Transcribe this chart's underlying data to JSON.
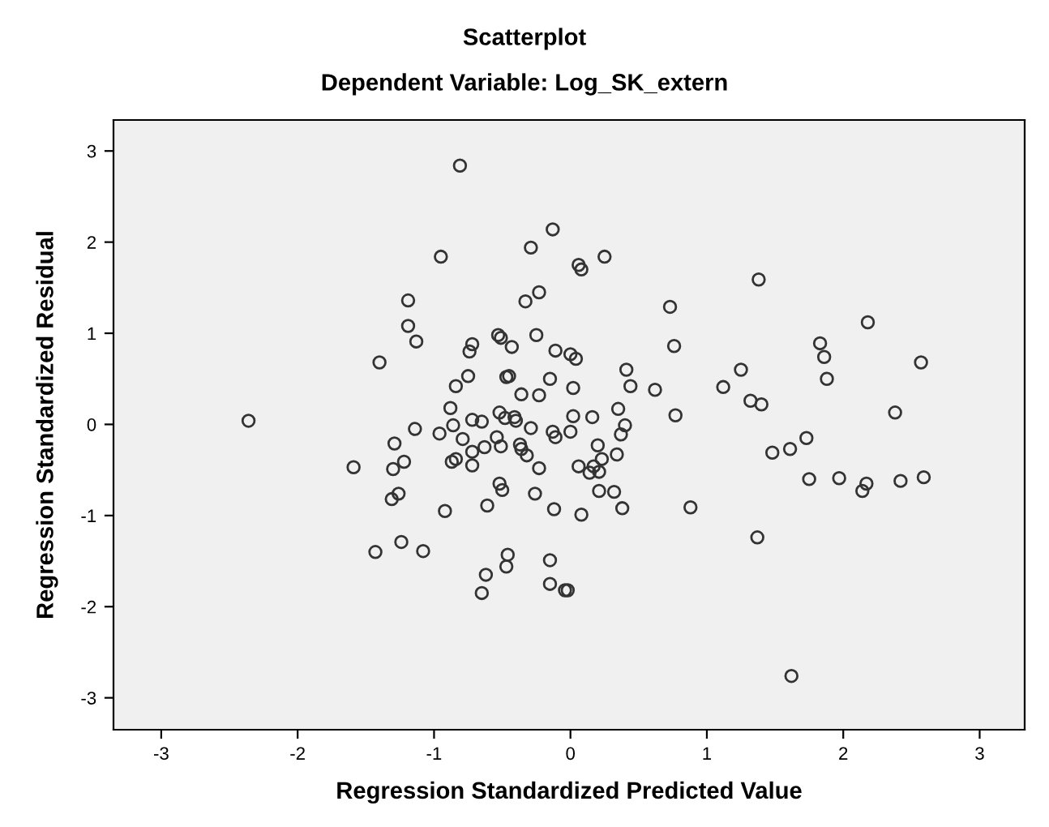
{
  "chart_data": {
    "type": "scatter",
    "title": "Scatterplot",
    "subtitle": "Dependent Variable: Log_SK_extern",
    "xlabel": "Regression Standardized Predicted Value",
    "ylabel": "Regression Standardized Residual",
    "xlim": [
      -3.35,
      3.33
    ],
    "ylim": [
      -3.35,
      3.34
    ],
    "xticks": [
      -3,
      -2,
      -1,
      0,
      1,
      2,
      3
    ],
    "yticks": [
      -3,
      -2,
      -1,
      0,
      1,
      2,
      3
    ],
    "grid": false,
    "marker": "circle",
    "legend": false,
    "series": [
      {
        "color": "#333333",
        "x": [
          -0.81,
          -0.13,
          -0.29,
          -0.95,
          -0.23,
          -0.33,
          -1.19,
          -1.19,
          -1.13,
          -0.53,
          -0.51,
          -0.25,
          -0.43,
          -0.72,
          -0.74,
          -0.11,
          -1.4,
          -0.75,
          -0.47,
          -0.45,
          -0.15,
          -0.84,
          -0.36,
          -0.23,
          -0.88,
          -0.52,
          0.06,
          0.08,
          0.25,
          1.38,
          0.73,
          0.76,
          2.18,
          1.83,
          1.86,
          1.88,
          2.57,
          0.0,
          0.04,
          0.41,
          0.44,
          0.62,
          1.12,
          1.25,
          1.32,
          1.4,
          0.02,
          0.35,
          2.38,
          0.02,
          0.16,
          0.77,
          0.4,
          0.37,
          0.0,
          0.2,
          0.34,
          0.23,
          0.06,
          0.14,
          0.17,
          0.21,
          0.21,
          0.32,
          0.38,
          0.08,
          0.88,
          1.37,
          1.48,
          1.61,
          1.73,
          1.75,
          1.97,
          2.14,
          2.17,
          2.42,
          2.59,
          1.62,
          -0.04,
          -0.02,
          -2.36,
          -1.14,
          -0.96,
          -0.86,
          -0.72,
          -0.65,
          -0.48,
          -0.41,
          -0.4,
          -0.29,
          -0.13,
          -0.11,
          -1.29,
          -0.79,
          -0.54,
          -0.51,
          -0.63,
          -0.72,
          -0.37,
          -0.36,
          -0.32,
          -1.59,
          -1.3,
          -1.22,
          -0.87,
          -0.84,
          -0.72,
          -0.23,
          -0.52,
          -0.5,
          -1.26,
          -1.31,
          -0.61,
          -0.92,
          -0.26,
          -0.12,
          -1.24,
          -1.43,
          -1.08,
          -0.46,
          -0.47,
          -0.62,
          -0.65,
          -0.15,
          -0.15
        ],
        "values": [
          2.84,
          2.14,
          1.94,
          1.84,
          1.45,
          1.35,
          1.36,
          1.08,
          0.91,
          0.98,
          0.95,
          0.98,
          0.85,
          0.88,
          0.8,
          0.81,
          0.68,
          0.53,
          0.52,
          0.53,
          0.5,
          0.42,
          0.33,
          0.32,
          0.18,
          0.13,
          1.75,
          1.7,
          1.84,
          1.59,
          1.29,
          0.86,
          1.12,
          0.89,
          0.74,
          0.5,
          0.68,
          0.77,
          0.72,
          0.6,
          0.42,
          0.38,
          0.41,
          0.6,
          0.26,
          0.22,
          0.4,
          0.17,
          0.13,
          0.09,
          0.08,
          0.1,
          -0.01,
          -0.11,
          -0.08,
          -0.23,
          -0.33,
          -0.38,
          -0.46,
          -0.53,
          -0.46,
          -0.52,
          -0.73,
          -0.74,
          -0.92,
          -0.99,
          -0.91,
          -1.24,
          -0.31,
          -0.27,
          -0.15,
          -0.6,
          -0.59,
          -0.73,
          -0.65,
          -0.62,
          -0.58,
          -2.76,
          -1.82,
          -1.82,
          0.04,
          -0.05,
          -0.1,
          -0.01,
          0.05,
          0.03,
          0.07,
          0.08,
          0.04,
          -0.04,
          -0.08,
          -0.14,
          -0.21,
          -0.16,
          -0.14,
          -0.24,
          -0.25,
          -0.3,
          -0.22,
          -0.27,
          -0.34,
          -0.47,
          -0.49,
          -0.41,
          -0.41,
          -0.38,
          -0.45,
          -0.48,
          -0.65,
          -0.72,
          -0.76,
          -0.82,
          -0.89,
          -0.95,
          -0.76,
          -0.93,
          -1.29,
          -1.4,
          -1.39,
          -1.43,
          -1.56,
          -1.65,
          -1.85,
          -1.49,
          -1.75
        ]
      }
    ]
  }
}
